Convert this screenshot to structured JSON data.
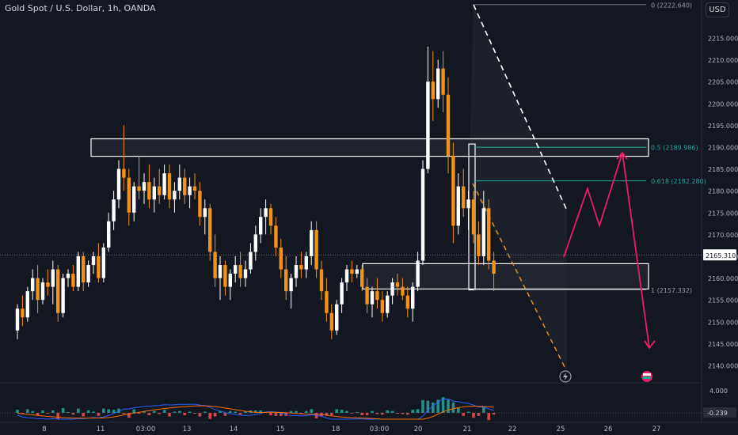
{
  "chart_title": "Gold Spot / U.S. Dollar, 1h, OANDA",
  "currency": "USD",
  "colors": {
    "background": "#131722",
    "candle_up": "#ffffff",
    "candle_down": "#f0931b",
    "fib_line": "#26a69a",
    "projection": "#e91e63",
    "trend_line": "#ffffff",
    "dashed_orange": "#f0931b",
    "zone_fill": "#2a2e39",
    "macd_line": "#2962ff",
    "signal_line": "#ff6d00",
    "hist_pos": "#26a69a",
    "hist_neg": "#ef5350"
  },
  "icons": [
    "lightning-icon",
    "flag-icon"
  ],
  "chart_data": {
    "type": "candlestick",
    "title": "Gold Spot / U.S. Dollar, 1h, OANDA",
    "price_axis": {
      "ticks": [
        2140,
        2145,
        2150,
        2155,
        2160,
        2165,
        2170,
        2175,
        2180,
        2185,
        2190,
        2195,
        2200,
        2205,
        2210,
        2215
      ],
      "tick_labels": [
        "2140.000",
        "2145.000",
        "2150.000",
        "2155.000",
        "2160.000",
        "2165.000",
        "2170.000",
        "2175.000",
        "2180.000",
        "2185.000",
        "2190.000",
        "2195.000",
        "2200.000",
        "2205.000",
        "2210.000",
        "2215.000"
      ],
      "range": [
        2137,
        2223
      ]
    },
    "time_axis": {
      "labels": [
        "8",
        "11",
        "03:00",
        "13",
        "14",
        "15",
        "18",
        "03:00",
        "20",
        "21",
        "22",
        "25",
        "26",
        "27"
      ]
    },
    "current_price": {
      "value": 2165.31,
      "label": "2165.310"
    },
    "fibonacci": [
      {
        "level": "0",
        "price": 2222.64,
        "label": "0 (2222.640)"
      },
      {
        "level": "0.5",
        "price": 2189.986,
        "label": "0.5 (2189.986)"
      },
      {
        "level": "0.618",
        "price": 2182.28,
        "label": "0.618 (2182.280)"
      },
      {
        "level": "1",
        "price": 2157.332,
        "label": "1 (2157.332)"
      }
    ],
    "zones": [
      {
        "name": "resistance-zone",
        "from": 2187.9,
        "to": 2191.9
      },
      {
        "name": "support-zone",
        "from": 2157.5,
        "to": 2163.3
      },
      {
        "name": "impulse-box",
        "from": 2157.3,
        "to": 2190.7
      }
    ],
    "projection_path": [
      2164.8,
      2180.5,
      2172.0,
      2188.7,
      2144.0
    ],
    "candles": [
      [
        2148,
        2154,
        2146,
        2153
      ],
      [
        2153,
        2156,
        2149,
        2151
      ],
      [
        2151,
        2158,
        2150,
        2157
      ],
      [
        2157,
        2162,
        2155,
        2160
      ],
      [
        2160,
        2163,
        2152,
        2155
      ],
      [
        2155,
        2160,
        2154,
        2159
      ],
      [
        2159,
        2162,
        2156,
        2158
      ],
      [
        2158,
        2164,
        2154,
        2162
      ],
      [
        2162,
        2163,
        2150,
        2152
      ],
      [
        2152,
        2161,
        2151,
        2160
      ],
      [
        2160,
        2162,
        2158,
        2161
      ],
      [
        2161,
        2163,
        2157,
        2158
      ],
      [
        2158,
        2166,
        2157,
        2165
      ],
      [
        2165,
        2166,
        2157,
        2159
      ],
      [
        2159,
        2164,
        2158,
        2163
      ],
      [
        2163,
        2166,
        2161,
        2165
      ],
      [
        2165,
        2168,
        2159,
        2160
      ],
      [
        2160,
        2168,
        2159,
        2167
      ],
      [
        2167,
        2175,
        2166,
        2173
      ],
      [
        2173,
        2180,
        2171,
        2178
      ],
      [
        2178,
        2187,
        2176,
        2185
      ],
      [
        2185,
        2195,
        2180,
        2183
      ],
      [
        2183,
        2185,
        2172,
        2175
      ],
      [
        2175,
        2182,
        2173,
        2181
      ],
      [
        2181,
        2188,
        2178,
        2180
      ],
      [
        2180,
        2184,
        2177,
        2182
      ],
      [
        2182,
        2186,
        2176,
        2178
      ],
      [
        2178,
        2183,
        2175,
        2181
      ],
      [
        2181,
        2185,
        2177,
        2179
      ],
      [
        2179,
        2186,
        2178,
        2184
      ],
      [
        2184,
        2186,
        2176,
        2178
      ],
      [
        2178,
        2182,
        2175,
        2180
      ],
      [
        2180,
        2186,
        2178,
        2183
      ],
      [
        2183,
        2185,
        2177,
        2179
      ],
      [
        2179,
        2183,
        2176,
        2181
      ],
      [
        2181,
        2184,
        2178,
        2180
      ],
      [
        2180,
        2182,
        2172,
        2174
      ],
      [
        2174,
        2178,
        2170,
        2176
      ],
      [
        2176,
        2177,
        2164,
        2166
      ],
      [
        2166,
        2170,
        2158,
        2160
      ],
      [
        2160,
        2165,
        2155,
        2163
      ],
      [
        2163,
        2164,
        2156,
        2158
      ],
      [
        2158,
        2162,
        2155,
        2161
      ],
      [
        2161,
        2165,
        2159,
        2163
      ],
      [
        2163,
        2166,
        2158,
        2160
      ],
      [
        2160,
        2164,
        2158,
        2162
      ],
      [
        2162,
        2168,
        2161,
        2166
      ],
      [
        2166,
        2172,
        2164,
        2170
      ],
      [
        2170,
        2176,
        2168,
        2174
      ],
      [
        2174,
        2178,
        2170,
        2176
      ],
      [
        2176,
        2177,
        2170,
        2172
      ],
      [
        2172,
        2174,
        2165,
        2167
      ],
      [
        2167,
        2169,
        2160,
        2162
      ],
      [
        2162,
        2165,
        2155,
        2157
      ],
      [
        2157,
        2161,
        2153,
        2160
      ],
      [
        2160,
        2165,
        2158,
        2163
      ],
      [
        2163,
        2166,
        2160,
        2162
      ],
      [
        2162,
        2166,
        2160,
        2165
      ],
      [
        2165,
        2173,
        2163,
        2171
      ],
      [
        2171,
        2173,
        2160,
        2162
      ],
      [
        2162,
        2164,
        2155,
        2157
      ],
      [
        2157,
        2160,
        2150,
        2152
      ],
      [
        2152,
        2154,
        2146,
        2148
      ],
      [
        2148,
        2155,
        2147,
        2154
      ],
      [
        2154,
        2160,
        2152,
        2159
      ],
      [
        2159,
        2163,
        2157,
        2162
      ],
      [
        2162,
        2164,
        2159,
        2161
      ],
      [
        2161,
        2163,
        2160,
        2162
      ],
      [
        2162,
        2163,
        2157,
        2158
      ],
      [
        2158,
        2160,
        2152,
        2154
      ],
      [
        2154,
        2158,
        2151,
        2157
      ],
      [
        2157,
        2160,
        2153,
        2155
      ],
      [
        2155,
        2157,
        2150,
        2152
      ],
      [
        2152,
        2157,
        2151,
        2156
      ],
      [
        2156,
        2160,
        2154,
        2159
      ],
      [
        2159,
        2161,
        2156,
        2158
      ],
      [
        2158,
        2160,
        2155,
        2156
      ],
      [
        2156,
        2158,
        2151,
        2153
      ],
      [
        2153,
        2159,
        2150,
        2158
      ],
      [
        2158,
        2166,
        2157,
        2164
      ],
      [
        2164,
        2187,
        2163,
        2185
      ],
      [
        2185,
        2213,
        2184,
        2205
      ],
      [
        2205,
        2212,
        2196,
        2201
      ],
      [
        2201,
        2210,
        2199,
        2208
      ],
      [
        2208,
        2212,
        2198,
        2202
      ],
      [
        2202,
        2206,
        2184,
        2188
      ],
      [
        2188,
        2191,
        2168,
        2172
      ],
      [
        2172,
        2184,
        2170,
        2181
      ],
      [
        2181,
        2185,
        2174,
        2176
      ],
      [
        2176,
        2180,
        2171,
        2178
      ],
      [
        2178,
        2180,
        2168,
        2170
      ],
      [
        2170,
        2173,
        2163,
        2165
      ],
      [
        2165,
        2180,
        2163,
        2176
      ],
      [
        2176,
        2178,
        2162,
        2164
      ],
      [
        2164,
        2166,
        2157,
        2161
      ]
    ]
  },
  "macd": {
    "scale_labels": [
      "4.000",
      "-0.239"
    ],
    "current_value": -0.239
  }
}
